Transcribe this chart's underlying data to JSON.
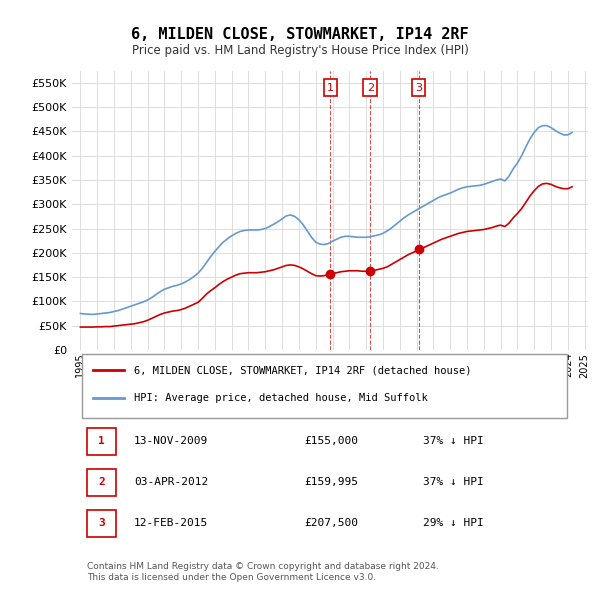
{
  "title": "6, MILDEN CLOSE, STOWMARKET, IP14 2RF",
  "subtitle": "Price paid vs. HM Land Registry's House Price Index (HPI)",
  "legend_label_red": "6, MILDEN CLOSE, STOWMARKET, IP14 2RF (detached house)",
  "legend_label_blue": "HPI: Average price, detached house, Mid Suffolk",
  "footer": "Contains HM Land Registry data © Crown copyright and database right 2024.\nThis data is licensed under the Open Government Licence v3.0.",
  "transactions": [
    {
      "num": 1,
      "date": "13-NOV-2009",
      "price": "£155,000",
      "hpi": "37% ↓ HPI",
      "year": 2009.87
    },
    {
      "num": 2,
      "date": "03-APR-2012",
      "price": "£159,995",
      "hpi": "37% ↓ HPI",
      "year": 2012.25
    },
    {
      "num": 3,
      "date": "12-FEB-2015",
      "price": "£207,500",
      "hpi": "29% ↓ HPI",
      "year": 2015.12
    }
  ],
  "hpi_data": {
    "years": [
      1995.0,
      1995.25,
      1995.5,
      1995.75,
      1996.0,
      1996.25,
      1996.5,
      1996.75,
      1997.0,
      1997.25,
      1997.5,
      1997.75,
      1998.0,
      1998.25,
      1998.5,
      1998.75,
      1999.0,
      1999.25,
      1999.5,
      1999.75,
      2000.0,
      2000.25,
      2000.5,
      2000.75,
      2001.0,
      2001.25,
      2001.5,
      2001.75,
      2002.0,
      2002.25,
      2002.5,
      2002.75,
      2003.0,
      2003.25,
      2003.5,
      2003.75,
      2004.0,
      2004.25,
      2004.5,
      2004.75,
      2005.0,
      2005.25,
      2005.5,
      2005.75,
      2006.0,
      2006.25,
      2006.5,
      2006.75,
      2007.0,
      2007.25,
      2007.5,
      2007.75,
      2008.0,
      2008.25,
      2008.5,
      2008.75,
      2009.0,
      2009.25,
      2009.5,
      2009.75,
      2010.0,
      2010.25,
      2010.5,
      2010.75,
      2011.0,
      2011.25,
      2011.5,
      2011.75,
      2012.0,
      2012.25,
      2012.5,
      2012.75,
      2013.0,
      2013.25,
      2013.5,
      2013.75,
      2014.0,
      2014.25,
      2014.5,
      2014.75,
      2015.0,
      2015.25,
      2015.5,
      2015.75,
      2016.0,
      2016.25,
      2016.5,
      2016.75,
      2017.0,
      2017.25,
      2017.5,
      2017.75,
      2018.0,
      2018.25,
      2018.5,
      2018.75,
      2019.0,
      2019.25,
      2019.5,
      2019.75,
      2020.0,
      2020.25,
      2020.5,
      2020.75,
      2021.0,
      2021.25,
      2021.5,
      2021.75,
      2022.0,
      2022.25,
      2022.5,
      2022.75,
      2023.0,
      2023.25,
      2023.5,
      2023.75,
      2024.0,
      2024.25
    ],
    "values": [
      75000,
      74000,
      73500,
      73000,
      74000,
      75000,
      76000,
      77000,
      79000,
      81000,
      84000,
      87000,
      90000,
      93000,
      96000,
      99000,
      103000,
      108000,
      114000,
      120000,
      125000,
      128000,
      131000,
      133000,
      136000,
      140000,
      145000,
      151000,
      158000,
      168000,
      180000,
      192000,
      203000,
      213000,
      222000,
      229000,
      235000,
      240000,
      244000,
      246000,
      247000,
      247000,
      247000,
      248000,
      250000,
      254000,
      259000,
      264000,
      270000,
      276000,
      278000,
      275000,
      268000,
      258000,
      245000,
      232000,
      222000,
      218000,
      217000,
      219000,
      224000,
      228000,
      232000,
      234000,
      234000,
      233000,
      232000,
      232000,
      232000,
      233000,
      235000,
      237000,
      240000,
      245000,
      251000,
      258000,
      265000,
      272000,
      278000,
      283000,
      288000,
      293000,
      298000,
      303000,
      308000,
      313000,
      317000,
      320000,
      323000,
      327000,
      331000,
      334000,
      336000,
      337000,
      338000,
      339000,
      341000,
      344000,
      347000,
      350000,
      352000,
      348000,
      358000,
      373000,
      385000,
      400000,
      418000,
      435000,
      448000,
      458000,
      462000,
      462000,
      458000,
      452000,
      447000,
      443000,
      443000,
      448000
    ]
  },
  "price_data": {
    "years": [
      1995.0,
      1995.25,
      1995.5,
      1995.75,
      1996.0,
      1996.25,
      1996.5,
      1996.75,
      1997.0,
      1997.25,
      1997.5,
      1997.75,
      1998.0,
      1998.25,
      1998.5,
      1998.75,
      1999.0,
      1999.25,
      1999.5,
      1999.75,
      2000.0,
      2000.25,
      2000.5,
      2000.75,
      2001.0,
      2001.25,
      2001.5,
      2001.75,
      2002.0,
      2002.25,
      2002.5,
      2002.75,
      2003.0,
      2003.25,
      2003.5,
      2003.75,
      2004.0,
      2004.25,
      2004.5,
      2004.75,
      2005.0,
      2005.25,
      2005.5,
      2005.75,
      2006.0,
      2006.25,
      2006.5,
      2006.75,
      2007.0,
      2007.25,
      2007.5,
      2007.75,
      2008.0,
      2008.25,
      2008.5,
      2008.75,
      2009.0,
      2009.25,
      2009.5,
      2009.75,
      2010.0,
      2010.25,
      2010.5,
      2010.75,
      2011.0,
      2011.25,
      2011.5,
      2011.75,
      2012.0,
      2012.25,
      2012.5,
      2012.75,
      2013.0,
      2013.25,
      2013.5,
      2013.75,
      2014.0,
      2014.25,
      2014.5,
      2014.75,
      2015.0,
      2015.25,
      2015.5,
      2015.75,
      2016.0,
      2016.25,
      2016.5,
      2016.75,
      2017.0,
      2017.25,
      2017.5,
      2017.75,
      2018.0,
      2018.25,
      2018.5,
      2018.75,
      2019.0,
      2019.25,
      2019.5,
      2019.75,
      2020.0,
      2020.25,
      2020.5,
      2020.75,
      2021.0,
      2021.25,
      2021.5,
      2021.75,
      2022.0,
      2022.25,
      2022.5,
      2022.75,
      2023.0,
      2023.25,
      2023.5,
      2023.75,
      2024.0,
      2024.25
    ],
    "values": [
      47000,
      47000,
      47000,
      47000,
      47500,
      47500,
      48000,
      48000,
      49000,
      50000,
      51000,
      52000,
      53000,
      54000,
      56000,
      58000,
      61000,
      65000,
      69000,
      73000,
      76000,
      78000,
      80000,
      81000,
      83000,
      86000,
      90000,
      94000,
      98000,
      106000,
      115000,
      122000,
      128000,
      135000,
      141000,
      146000,
      150000,
      154000,
      157000,
      158000,
      159000,
      159000,
      159000,
      160000,
      161000,
      163000,
      165000,
      168000,
      171000,
      174000,
      175000,
      174000,
      171000,
      167000,
      162000,
      157000,
      153000,
      152000,
      153000,
      155000,
      157000,
      159000,
      161000,
      162000,
      163000,
      163000,
      163000,
      162000,
      162000,
      163000,
      164000,
      166000,
      168000,
      171000,
      176000,
      181000,
      186000,
      191000,
      196000,
      200000,
      204000,
      208000,
      212000,
      216000,
      220000,
      224000,
      228000,
      231000,
      234000,
      237000,
      240000,
      242000,
      244000,
      245000,
      246000,
      247000,
      248000,
      250000,
      252000,
      255000,
      257000,
      254000,
      261000,
      272000,
      281000,
      291000,
      304000,
      317000,
      328000,
      337000,
      342000,
      343000,
      341000,
      337000,
      334000,
      332000,
      332000,
      336000
    ]
  },
  "ylim": [
    0,
    575000
  ],
  "yticks": [
    0,
    50000,
    100000,
    150000,
    200000,
    250000,
    300000,
    350000,
    400000,
    450000,
    500000,
    550000
  ],
  "xlim": [
    1994.5,
    2025.2
  ],
  "xticks": [
    1995,
    1996,
    1997,
    1998,
    1999,
    2000,
    2001,
    2002,
    2003,
    2004,
    2005,
    2006,
    2007,
    2008,
    2009,
    2010,
    2011,
    2012,
    2013,
    2014,
    2015,
    2016,
    2017,
    2018,
    2019,
    2020,
    2021,
    2022,
    2023,
    2024,
    2025
  ],
  "red_color": "#cc0000",
  "blue_color": "#6699cc",
  "vline_color": "#cc0000",
  "marker_color_fill": "#cc0000",
  "background_color": "#ffffff",
  "grid_color": "#dddddd"
}
